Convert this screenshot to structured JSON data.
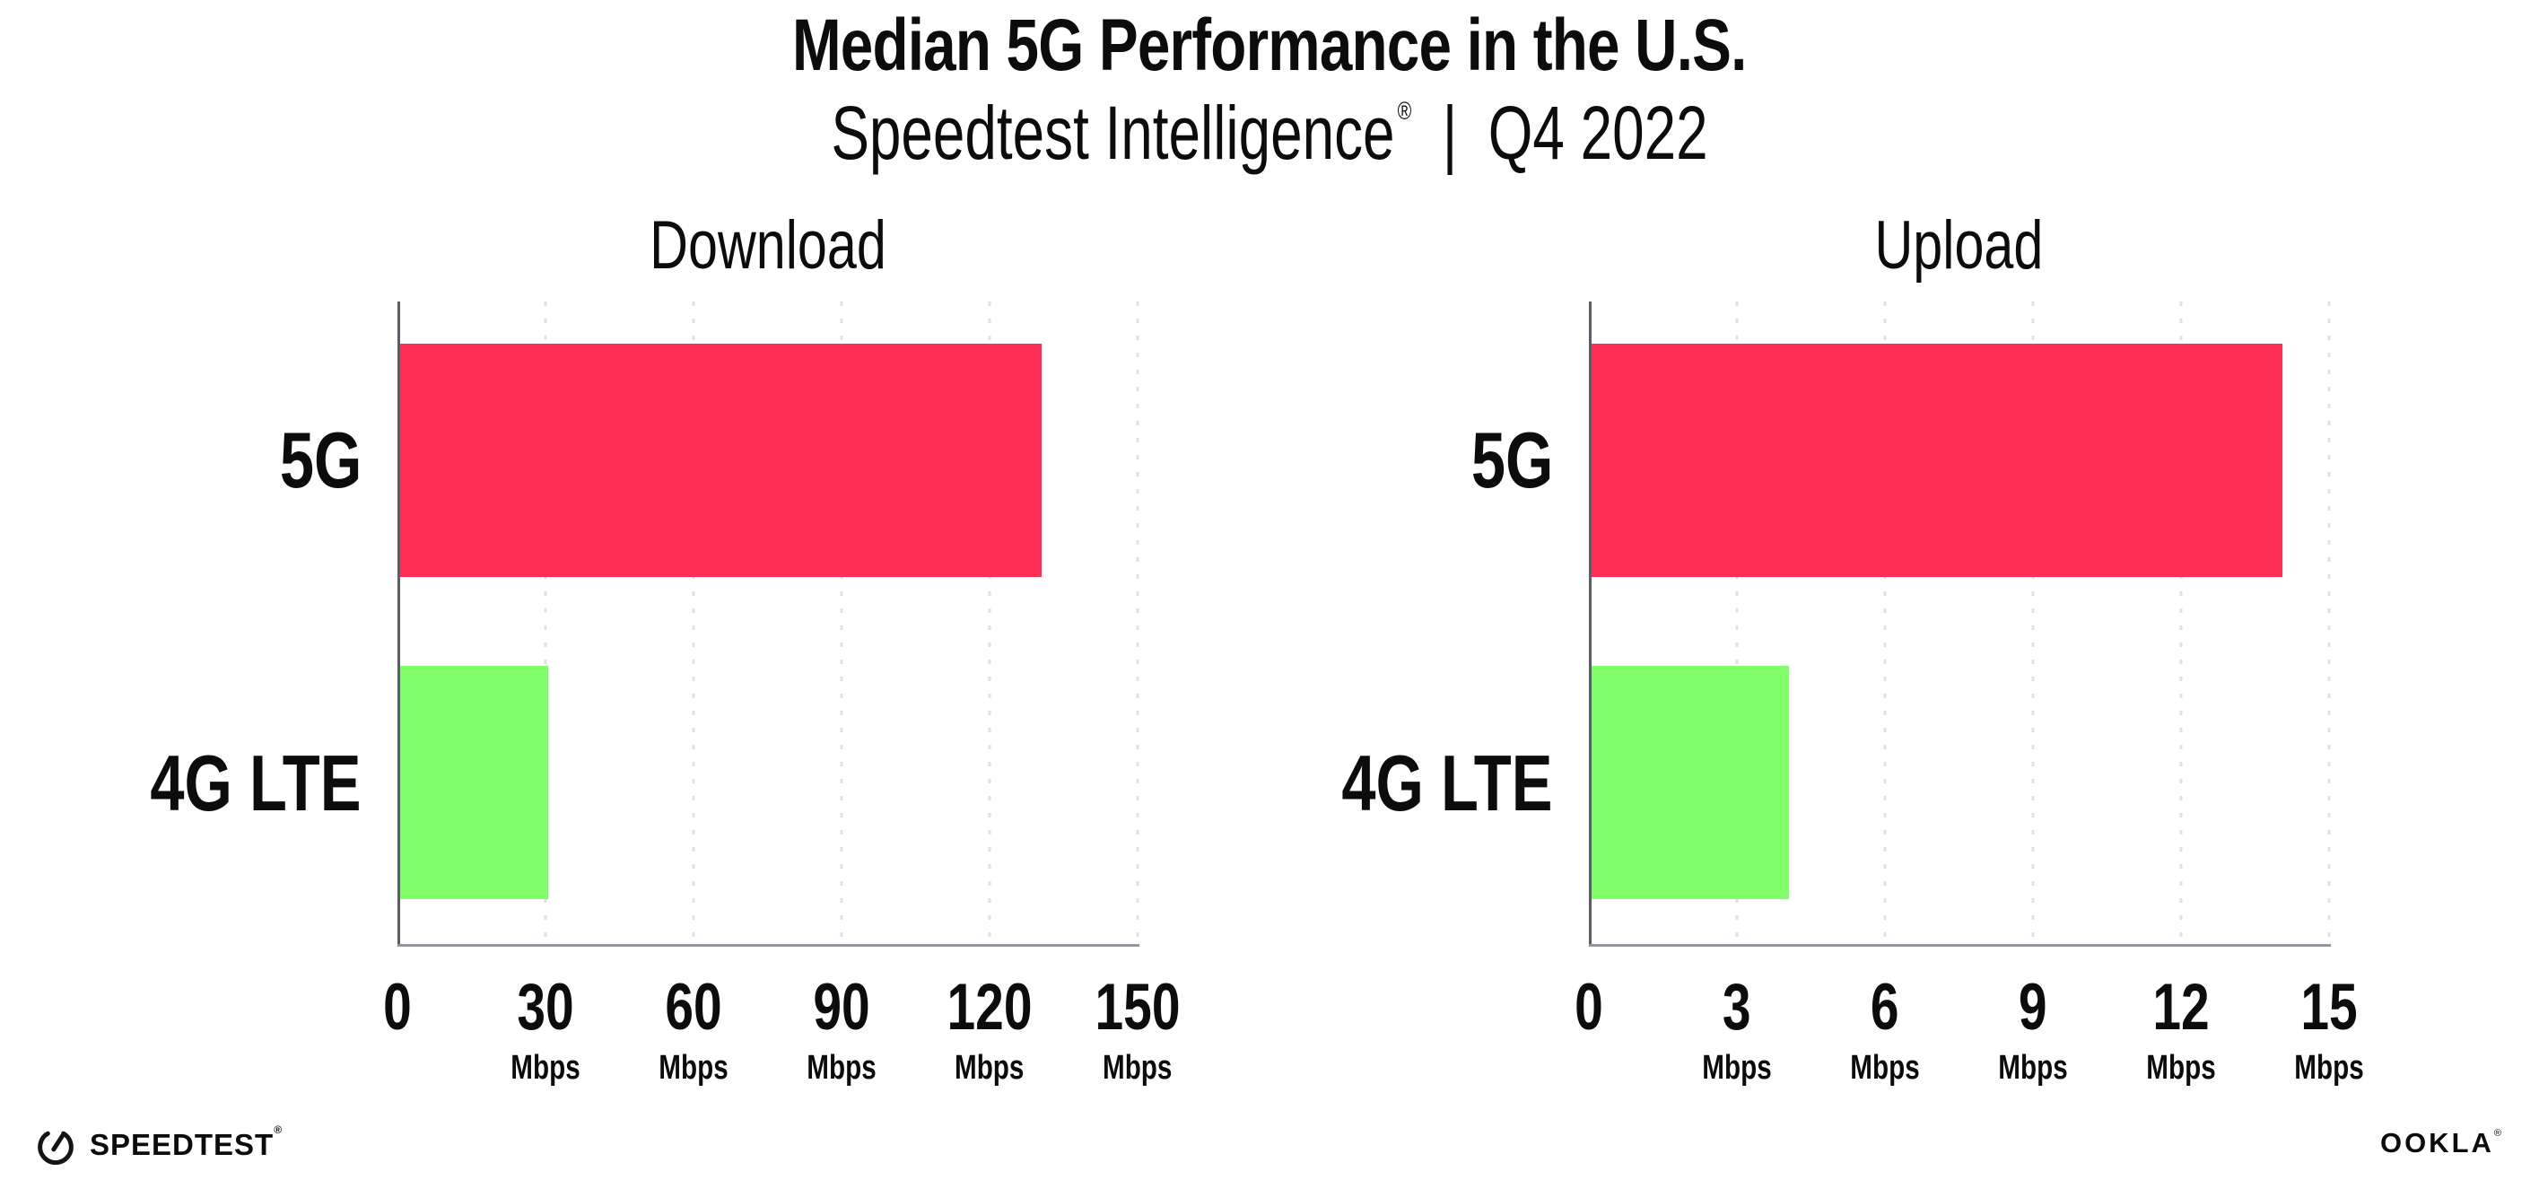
{
  "header": {
    "title": "Median 5G Performance in the U.S.",
    "subtitle_brand": "Speedtest Intelligence",
    "subtitle_registered": "®",
    "subtitle_separator": "|",
    "subtitle_period": "Q4 2022"
  },
  "labels": {
    "mbps": "Mbps"
  },
  "footer": {
    "speedtest_label": "SPEEDTEST",
    "speedtest_mark": "®",
    "speedtest_icon": "speedometer-gauge-icon",
    "ookla_label": "OOKLA",
    "ookla_mark": "®"
  },
  "colors": {
    "bar_5g": "#ff2e56",
    "bar_4g_lte": "#80ff6b",
    "gridline_dots": "#dfe0ec",
    "x_axis": "#95959c",
    "y_axis": "#5c5c66",
    "text": "#0c0c0c",
    "background": "#ffffff"
  },
  "chart_data": [
    {
      "type": "bar",
      "orientation": "horizontal",
      "title": "Download",
      "categories": [
        "5G",
        "4G LTE"
      ],
      "values": [
        130,
        30
      ],
      "value_unit": "Mbps",
      "xlim": [
        0,
        150
      ],
      "xticks": [
        0,
        30,
        60,
        90,
        120,
        150
      ],
      "xtick_unit_label": "Mbps",
      "bar_colors": [
        "#ff2e56",
        "#80ff6b"
      ],
      "grid": "vertical-dotted",
      "legend": "none"
    },
    {
      "type": "bar",
      "orientation": "horizontal",
      "title": "Upload",
      "categories": [
        "5G",
        "4G LTE"
      ],
      "values": [
        14,
        4
      ],
      "value_unit": "Mbps",
      "xlim": [
        0,
        15
      ],
      "xticks": [
        0,
        3,
        6,
        9,
        12,
        15
      ],
      "xtick_unit_label": "Mbps",
      "bar_colors": [
        "#ff2e56",
        "#80ff6b"
      ],
      "grid": "vertical-dotted",
      "legend": "none"
    }
  ]
}
